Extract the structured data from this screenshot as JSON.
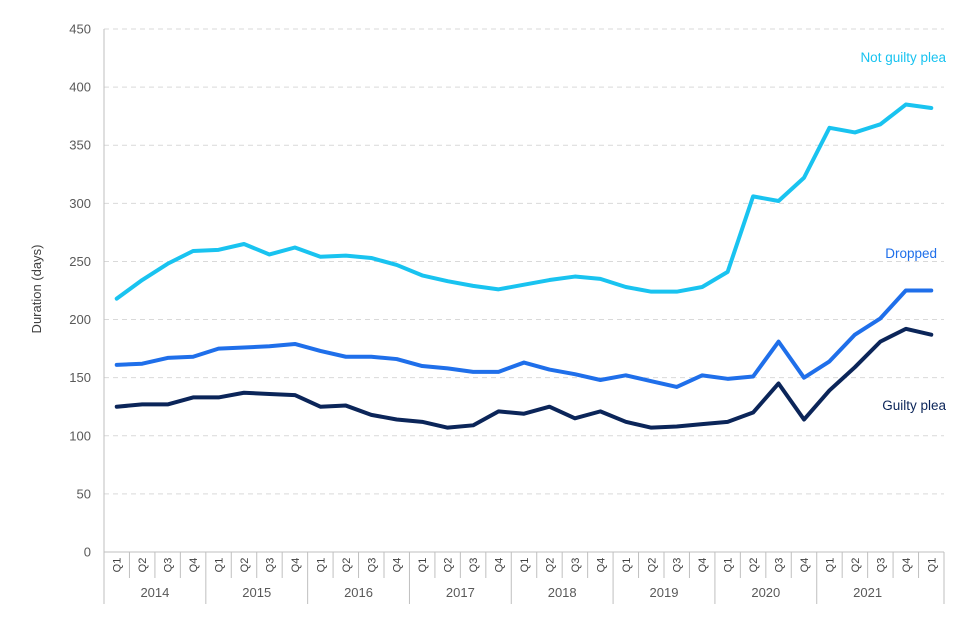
{
  "chart_data": {
    "type": "line",
    "title": "",
    "xlabel": "",
    "ylabel": "Duration (days)",
    "ylim": [
      0,
      450
    ],
    "ytick_step": 50,
    "grid": true,
    "quarters": [
      "Q1",
      "Q2",
      "Q3",
      "Q4",
      "Q1",
      "Q2",
      "Q3",
      "Q4",
      "Q1",
      "Q2",
      "Q3",
      "Q4",
      "Q1",
      "Q2",
      "Q3",
      "Q4",
      "Q1",
      "Q2",
      "Q3",
      "Q4",
      "Q1",
      "Q2",
      "Q3",
      "Q4",
      "Q1",
      "Q2",
      "Q3",
      "Q4",
      "Q1",
      "Q2",
      "Q3",
      "Q4",
      "Q1"
    ],
    "year_groups": [
      {
        "label": "2014",
        "start": 0,
        "count": 4
      },
      {
        "label": "2015",
        "start": 4,
        "count": 4
      },
      {
        "label": "2016",
        "start": 8,
        "count": 4
      },
      {
        "label": "2017",
        "start": 12,
        "count": 4
      },
      {
        "label": "2018",
        "start": 16,
        "count": 4
      },
      {
        "label": "2019",
        "start": 20,
        "count": 4
      },
      {
        "label": "2020",
        "start": 24,
        "count": 4
      },
      {
        "label": "2021",
        "start": 28,
        "count": 4
      }
    ],
    "series": [
      {
        "name": "Not guilty plea",
        "color": "#19c3f0",
        "values": [
          218,
          234,
          248,
          259,
          260,
          265,
          256,
          262,
          254,
          255,
          253,
          247,
          238,
          233,
          229,
          226,
          230,
          234,
          237,
          235,
          228,
          224,
          224,
          228,
          241,
          306,
          302,
          322,
          365,
          361,
          368,
          385,
          382
        ]
      },
      {
        "name": "Dropped",
        "color": "#1f6fea",
        "values": [
          161,
          162,
          167,
          168,
          175,
          176,
          177,
          179,
          173,
          168,
          168,
          166,
          160,
          158,
          155,
          155,
          163,
          157,
          153,
          148,
          152,
          147,
          142,
          152,
          149,
          151,
          181,
          150,
          164,
          187,
          201,
          225,
          225
        ]
      },
      {
        "name": "Guilty plea",
        "color": "#0b2559",
        "values": [
          125,
          127,
          127,
          133,
          133,
          137,
          136,
          135,
          125,
          126,
          118,
          114,
          112,
          107,
          109,
          121,
          119,
          125,
          115,
          121,
          112,
          107,
          108,
          110,
          112,
          120,
          145,
          114,
          139,
          159,
          181,
          192,
          187
        ]
      }
    ]
  }
}
